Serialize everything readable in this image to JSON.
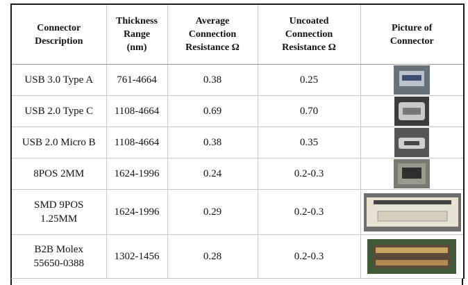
{
  "table": {
    "header": [
      [
        "Connector",
        "Description"
      ],
      [
        "Thickness",
        "Range",
        "(nm)"
      ],
      [
        "Average",
        "Connection",
        "Resistance Ω"
      ],
      [
        "Uncoated",
        "Connection",
        "Resistance Ω"
      ],
      [
        "Picture of",
        "Connector"
      ]
    ],
    "rows": [
      [
        [
          "USB 3.0 Type A"
        ],
        "761-4664",
        "0.38",
        "0.25"
      ],
      [
        [
          "USB 2.0 Type C"
        ],
        "1108-4664",
        "0.69",
        "0.70"
      ],
      [
        [
          "USB 2.0 Micro B"
        ],
        "1108-4664",
        "0.38",
        "0.35"
      ],
      [
        [
          "8POS 2MM"
        ],
        "1624-1996",
        "0.24",
        "0.2-0.3"
      ],
      [
        [
          "SMD 9POS",
          "1.25MM"
        ],
        "1624-1996",
        "0.29",
        "0.2-0.3"
      ],
      [
        [
          "B2B Molex",
          "55650-0388"
        ],
        "1302-1456",
        "0.28",
        "0.2-0.3"
      ]
    ]
  }
}
